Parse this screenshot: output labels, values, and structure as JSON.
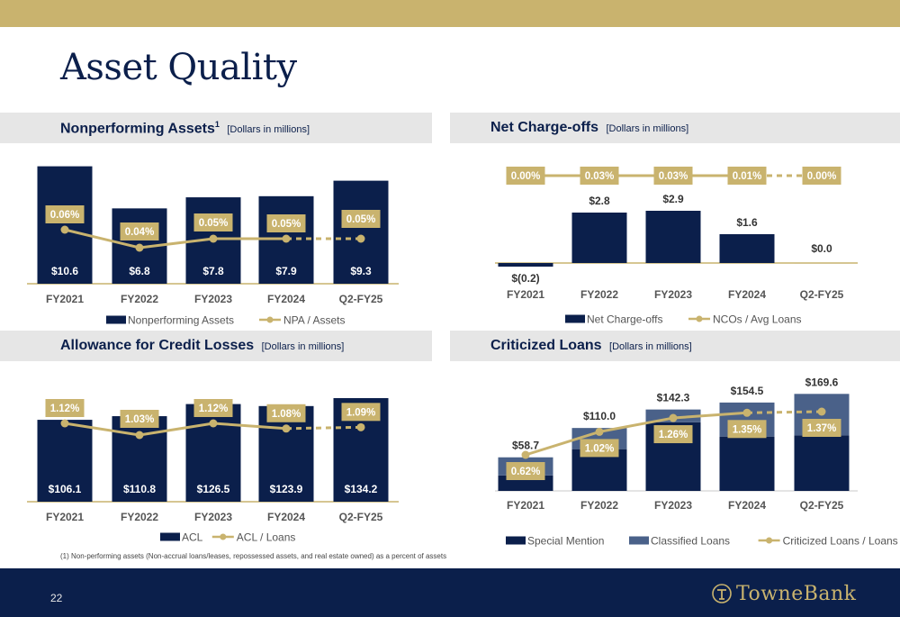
{
  "page": {
    "title": "Asset Quality",
    "page_number": "22"
  },
  "footnote": "(1)  Non-performing assets (Non-accrual loans/leases, repossessed assets, and real estate owned) as a percent of assets",
  "logo": {
    "text": "TowneBank",
    "icon": "towne-emblem-icon"
  },
  "colors": {
    "navy": "#0b1f4b",
    "gold": "#c9b36e",
    "slate": "#4a6189",
    "panel": "#e6e6e6"
  },
  "panels": {
    "npa": {
      "title": "Nonperforming Assets",
      "sup": "1",
      "subtitle": "[Dollars in millions]"
    },
    "nco": {
      "title": "Net Charge-offs",
      "subtitle": "[Dollars in millions]"
    },
    "acl": {
      "title": "Allowance for Credit Losses",
      "subtitle": "[Dollars in millions]"
    },
    "crit": {
      "title": "Criticized Loans",
      "subtitle": "[Dollars in millions]"
    }
  },
  "chart_data": [
    {
      "type": "bar",
      "categories": [
        "FY2021",
        "FY2022",
        "FY2023",
        "FY2024",
        "Q2-FY25"
      ],
      "series": [
        {
          "name": "Nonperforming Assets",
          "values": [
            10.6,
            6.8,
            7.8,
            7.9,
            9.3
          ],
          "labels": [
            "$10.6",
            "$6.8",
            "$7.8",
            "$7.9",
            "$9.3"
          ]
        },
        {
          "name": "NPA / Assets",
          "type": "line",
          "values": [
            0.06,
            0.04,
            0.05,
            0.05,
            0.05
          ],
          "labels": [
            "0.06%",
            "0.04%",
            "0.05%",
            "0.05%",
            "0.05%"
          ],
          "dashed_last_segment": true
        }
      ],
      "legend": "bottom"
    },
    {
      "type": "bar",
      "categories": [
        "FY2021",
        "FY2022",
        "FY2023",
        "FY2024",
        "Q2-FY25"
      ],
      "series": [
        {
          "name": "Net Charge-offs",
          "values": [
            -0.2,
            2.8,
            2.9,
            1.6,
            0.0
          ],
          "labels": [
            "$(0.2)",
            "$2.8",
            "$2.9",
            "$1.6",
            "$0.0"
          ]
        },
        {
          "name": "NCOs / Avg Loans",
          "type": "line",
          "values": [
            0.0,
            0.03,
            0.03,
            0.01,
            0.0
          ],
          "labels": [
            "0.00%",
            "0.03%",
            "0.03%",
            "0.01%",
            "0.00%"
          ],
          "dashed_last_segment": true
        }
      ],
      "legend": "bottom"
    },
    {
      "type": "bar",
      "categories": [
        "FY2021",
        "FY2022",
        "FY2023",
        "FY2024",
        "Q2-FY25"
      ],
      "series": [
        {
          "name": "ACL",
          "values": [
            106.1,
            110.8,
            126.5,
            123.9,
            134.2
          ],
          "labels": [
            "$106.1",
            "$110.8",
            "$126.5",
            "$123.9",
            "$134.2"
          ]
        },
        {
          "name": "ACL / Loans",
          "type": "line",
          "values": [
            1.12,
            1.03,
            1.12,
            1.08,
            1.09
          ],
          "labels": [
            "1.12%",
            "1.03%",
            "1.12%",
            "1.08%",
            "1.09%"
          ],
          "dashed_last_segment": true
        }
      ],
      "legend": "bottom"
    },
    {
      "type": "bar",
      "stacked": true,
      "categories": [
        "FY2021",
        "FY2022",
        "FY2023",
        "FY2024",
        "Q2-FY25"
      ],
      "series": [
        {
          "name": "Special Mention",
          "values": [
            27,
            73,
            120,
            95,
            97
          ]
        },
        {
          "name": "Classified Loans",
          "values": [
            31.7,
            37,
            22.3,
            59.5,
            72.6
          ]
        },
        {
          "name": "Criticized Loans / Loans",
          "type": "line",
          "values": [
            0.62,
            1.02,
            1.26,
            1.35,
            1.37
          ],
          "labels": [
            "0.62%",
            "1.02%",
            "1.26%",
            "1.35%",
            "1.37%"
          ],
          "dashed_last_segment": true
        }
      ],
      "totals": [
        58.7,
        110.0,
        142.3,
        154.5,
        169.6
      ],
      "total_labels": [
        "$58.7",
        "$110.0",
        "$142.3",
        "$154.5",
        "$169.6"
      ],
      "legend": "bottom"
    }
  ]
}
